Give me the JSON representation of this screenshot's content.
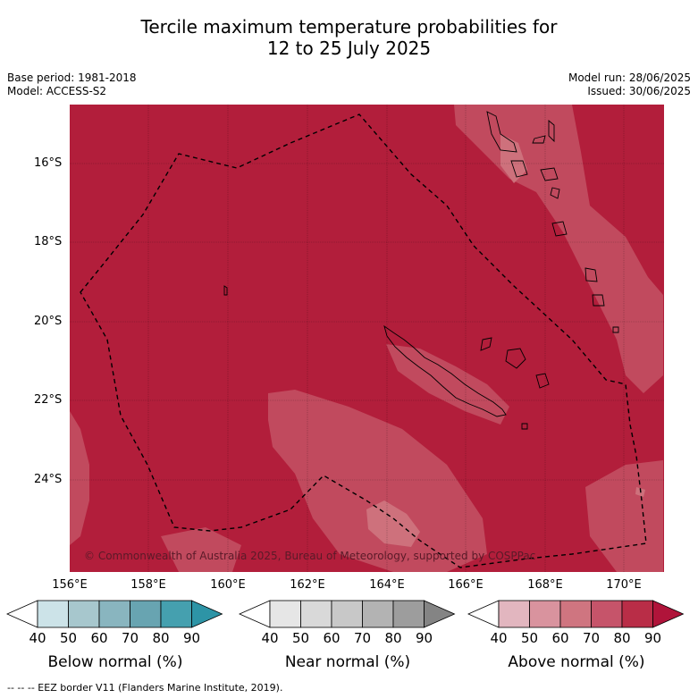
{
  "title_line1": "Tercile maximum temperature probabilities for",
  "title_line2": "12 to 25 July 2025",
  "meta_left": [
    "Base period: 1981-2018",
    "Model: ACCESS-S2"
  ],
  "meta_right": [
    "Model run: 28/06/2025",
    "Issued: 30/06/2025"
  ],
  "lat_labels": [
    "16°S",
    "18°S",
    "20°S",
    "22°S",
    "24°S"
  ],
  "lon_labels": [
    "156°E",
    "158°E",
    "160°E",
    "162°E",
    "164°E",
    "166°E",
    "168°E",
    "170°E"
  ],
  "copyright": "© Commonwealth of Australia 2025, Bureau of Meteorology, supported by COSPPac",
  "legend": {
    "ticks": [
      "40",
      "50",
      "60",
      "70",
      "80",
      "90"
    ],
    "below": {
      "title": "Below normal (%)",
      "colors": [
        "#ffffff",
        "#cce3e8",
        "#a7c7cd",
        "#89b5bf",
        "#68a4b1",
        "#45a0af",
        "#2d94a6"
      ]
    },
    "near": {
      "title": "Near normal (%)",
      "colors": [
        "#ffffff",
        "#e6e6e6",
        "#d9d9d9",
        "#c8c8c8",
        "#b3b3b3",
        "#9d9d9d",
        "#848484"
      ]
    },
    "above": {
      "title": "Above normal (%)",
      "colors": [
        "#ffffff",
        "#e2b6bf",
        "#d9939e",
        "#cf7580",
        "#c6546a",
        "#b92d47",
        "#b0143a"
      ]
    }
  },
  "map_colors": {
    "dominant": "#b21e3b",
    "lighter": "#c14a5e",
    "lightest": "#cf7580"
  },
  "footer": "-- -- -- EEZ border V11 (Flanders Marine Institute, 2019)."
}
